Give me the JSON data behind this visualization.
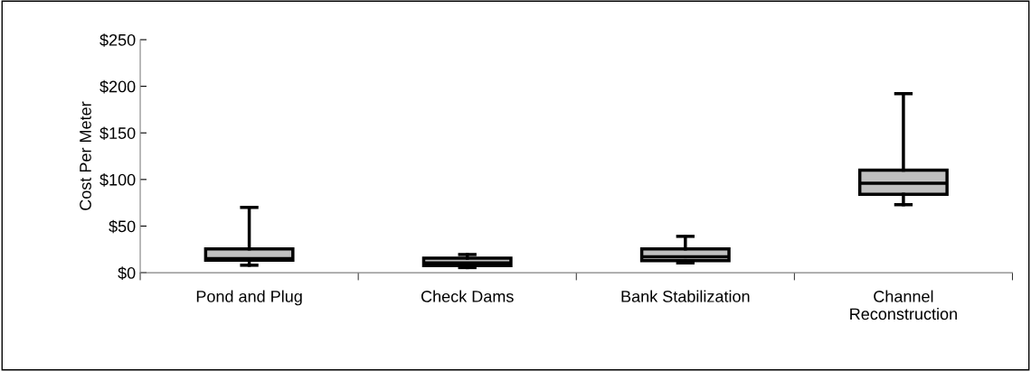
{
  "chart_data": {
    "type": "box",
    "ylabel": "Cost Per Meter",
    "categories": [
      "Pond and Plug",
      "Check Dams",
      "Bank Stabilization",
      "Channel\nReconstruction"
    ],
    "boxes": [
      {
        "low": 8,
        "q1": 13.5,
        "median": 15,
        "q3": 25.5,
        "high": 70
      },
      {
        "low": 5.5,
        "q1": 7.5,
        "median": 10.5,
        "q3": 15.5,
        "high": 19.5
      },
      {
        "low": 10.5,
        "q1": 13,
        "median": 17,
        "q3": 25.5,
        "high": 39
      },
      {
        "low": 73,
        "q1": 84,
        "median": 96,
        "q3": 110,
        "high": 192
      }
    ],
    "color": "#c0c0c0",
    "ylim": [
      0,
      250
    ],
    "yticks": [
      {
        "value": 0,
        "label": "$0"
      },
      {
        "value": 50,
        "label": "$50"
      },
      {
        "value": 100,
        "label": "$100"
      },
      {
        "value": 150,
        "label": "$150"
      },
      {
        "value": 200,
        "label": "$200"
      },
      {
        "value": 250,
        "label": "$250"
      }
    ],
    "grid": false,
    "legend": false
  }
}
